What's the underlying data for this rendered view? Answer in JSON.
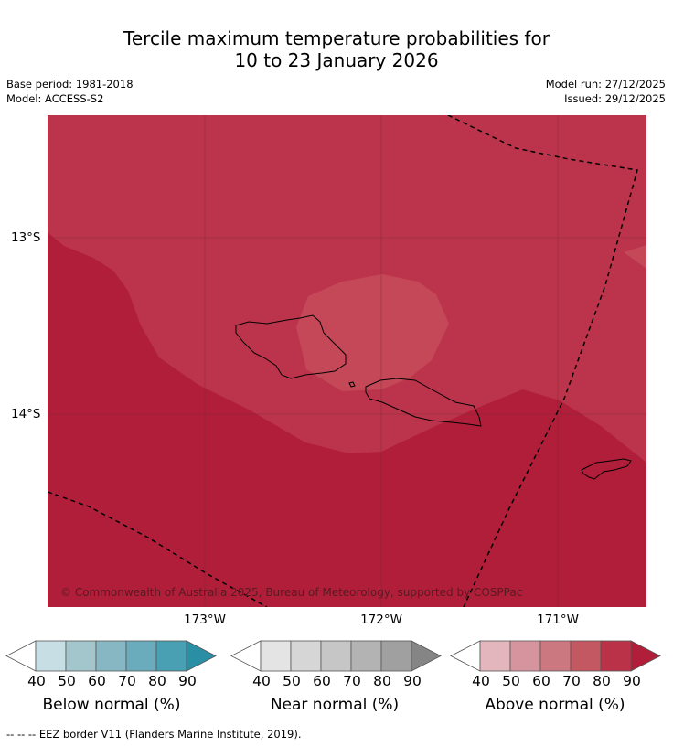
{
  "title": {
    "line1": "Tercile maximum temperature probabilities for",
    "line2": "10 to 23 January 2026"
  },
  "meta": {
    "base_period": "Base period: 1981-2018",
    "model": "Model: ACCESS-S2",
    "model_run": "Model run: 27/12/2025",
    "issued": "Issued: 29/12/2025"
  },
  "map": {
    "lat_labels": [
      "13°S",
      "14°S"
    ],
    "lon_labels": [
      "173°W",
      "172°W",
      "171°W"
    ],
    "copyright": "© Commonwealth of Australia 2025, Bureau of Meteorology, supported by COSPPac",
    "colors": {
      "above_90": "#b01e3a",
      "above_80": "#bc344b",
      "above_70": "#c44858",
      "land_outline": "#000000",
      "grid": "#6b2a33"
    }
  },
  "colorbars": [
    {
      "label": "Below normal (%)",
      "ticks": [
        "40",
        "50",
        "60",
        "70",
        "80",
        "90"
      ],
      "colors": [
        "#ffffff",
        "#c6dee4",
        "#a3c6cc",
        "#86b7c3",
        "#6aacbb",
        "#48a0b2",
        "#2a8fa5"
      ]
    },
    {
      "label": "Near normal (%)",
      "ticks": [
        "40",
        "50",
        "60",
        "70",
        "80",
        "90"
      ],
      "colors": [
        "#ffffff",
        "#e4e4e4",
        "#d6d6d6",
        "#c6c6c6",
        "#b3b3b3",
        "#a0a0a0",
        "#858585"
      ]
    },
    {
      "label": "Above normal (%)",
      "ticks": [
        "40",
        "50",
        "60",
        "70",
        "80",
        "90"
      ],
      "colors": [
        "#ffffff",
        "#e2b6bc",
        "#d6959e",
        "#cb7880",
        "#c45862",
        "#ba3248",
        "#b01e3a"
      ]
    }
  ],
  "footer": "-- -- -- EEZ border V11 (Flanders Marine Institute, 2019)."
}
